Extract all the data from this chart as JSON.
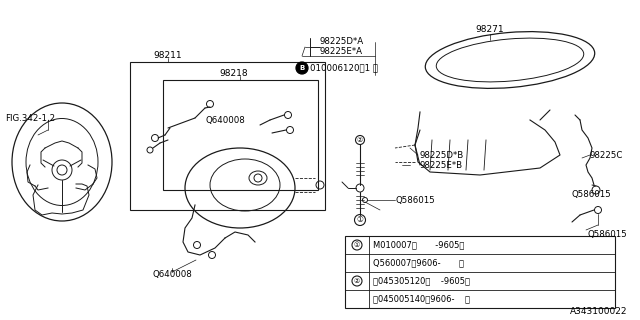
{
  "bg_color": "#ffffff",
  "line_color": "#1a1a1a",
  "fig_width": 6.4,
  "fig_height": 3.2,
  "dpi": 100,
  "footer_text": "A343100022",
  "labels": {
    "fig_ref": "FIG.342-1,2",
    "98211": "98211",
    "98218": "98218",
    "Q640008_inner": "Q640008",
    "Q640008_outer": "Q640008",
    "98271": "98271",
    "98225DA": "98225D*A",
    "98225EA": "98225E*A",
    "B_label": "010006120（1 ）",
    "98225DB": "98225D*B",
    "98225EB": "98225E*B",
    "Q586015_left": "Q586015",
    "Q586015_right": "Q586015",
    "98225C": "98225C",
    "table_row1a": "M010007（       -9605）",
    "table_row1b": "Q560007（9606-       ）",
    "table_row2a": "Ⓢ045305120（    -9605）",
    "table_row2b": "Ⓢ045005140（9606-    ）"
  }
}
